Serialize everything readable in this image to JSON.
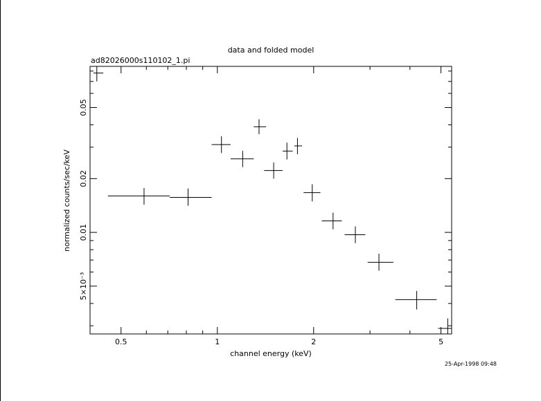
{
  "chart_data": {
    "type": "scatter",
    "title": "data and folded model",
    "subtitle": "ad82026000s110102_1.pi",
    "xlabel": "channel energy (keV)",
    "ylabel": "normalized counts/sec/keV",
    "timestamp": "25-Apr-1998 09:48",
    "x_scale": "log",
    "y_scale": "log",
    "xlim": [
      0.4,
      5.4
    ],
    "ylim": [
      0.0027,
      0.085
    ],
    "x_ticks": [
      {
        "value": 0.5,
        "label": "0.5"
      },
      {
        "value": 1,
        "label": "1"
      },
      {
        "value": 2,
        "label": "2"
      },
      {
        "value": 5,
        "label": "5"
      }
    ],
    "y_ticks": [
      {
        "value": 0.005,
        "label": "5×10⁻³"
      },
      {
        "value": 0.01,
        "label": "0.01"
      },
      {
        "value": 0.02,
        "label": "0.02"
      },
      {
        "value": 0.05,
        "label": "0.05"
      }
    ],
    "grid": false,
    "series": [
      {
        "points": [
          {
            "x": 0.42,
            "y": 0.078,
            "xlo": 0.41,
            "xhi": 0.44,
            "ylo": 0.07,
            "yhi": 0.087
          },
          {
            "x": 0.59,
            "y": 0.016,
            "xlo": 0.455,
            "xhi": 0.71,
            "ylo": 0.0143,
            "yhi": 0.0177
          },
          {
            "x": 0.81,
            "y": 0.0157,
            "xlo": 0.71,
            "xhi": 0.96,
            "ylo": 0.0141,
            "yhi": 0.0176
          },
          {
            "x": 1.03,
            "y": 0.031,
            "xlo": 0.96,
            "xhi": 1.1,
            "ylo": 0.0278,
            "yhi": 0.0345
          },
          {
            "x": 1.2,
            "y": 0.0258,
            "xlo": 1.1,
            "xhi": 1.3,
            "ylo": 0.0232,
            "yhi": 0.0286
          },
          {
            "x": 1.35,
            "y": 0.039,
            "xlo": 1.3,
            "xhi": 1.42,
            "ylo": 0.0355,
            "yhi": 0.043
          },
          {
            "x": 1.5,
            "y": 0.0222,
            "xlo": 1.4,
            "xhi": 1.6,
            "ylo": 0.02,
            "yhi": 0.0246
          },
          {
            "x": 1.65,
            "y": 0.0285,
            "xlo": 1.6,
            "xhi": 1.72,
            "ylo": 0.0256,
            "yhi": 0.0318
          },
          {
            "x": 1.78,
            "y": 0.0305,
            "xlo": 1.74,
            "xhi": 1.84,
            "ylo": 0.0274,
            "yhi": 0.0338
          },
          {
            "x": 1.98,
            "y": 0.0167,
            "xlo": 1.86,
            "xhi": 2.1,
            "ylo": 0.0149,
            "yhi": 0.0186
          },
          {
            "x": 2.3,
            "y": 0.0116,
            "xlo": 2.12,
            "xhi": 2.45,
            "ylo": 0.0104,
            "yhi": 0.0129
          },
          {
            "x": 2.7,
            "y": 0.0097,
            "xlo": 2.5,
            "xhi": 2.9,
            "ylo": 0.0087,
            "yhi": 0.0108
          },
          {
            "x": 3.2,
            "y": 0.0068,
            "xlo": 2.95,
            "xhi": 3.55,
            "ylo": 0.0061,
            "yhi": 0.0076
          },
          {
            "x": 4.2,
            "y": 0.0042,
            "xlo": 3.6,
            "xhi": 4.85,
            "ylo": 0.0037,
            "yhi": 0.0047
          },
          {
            "x": 5.25,
            "y": 0.0029,
            "xlo": 4.9,
            "xhi": 5.8,
            "ylo": 0.0026,
            "yhi": 0.0033
          }
        ]
      }
    ]
  }
}
